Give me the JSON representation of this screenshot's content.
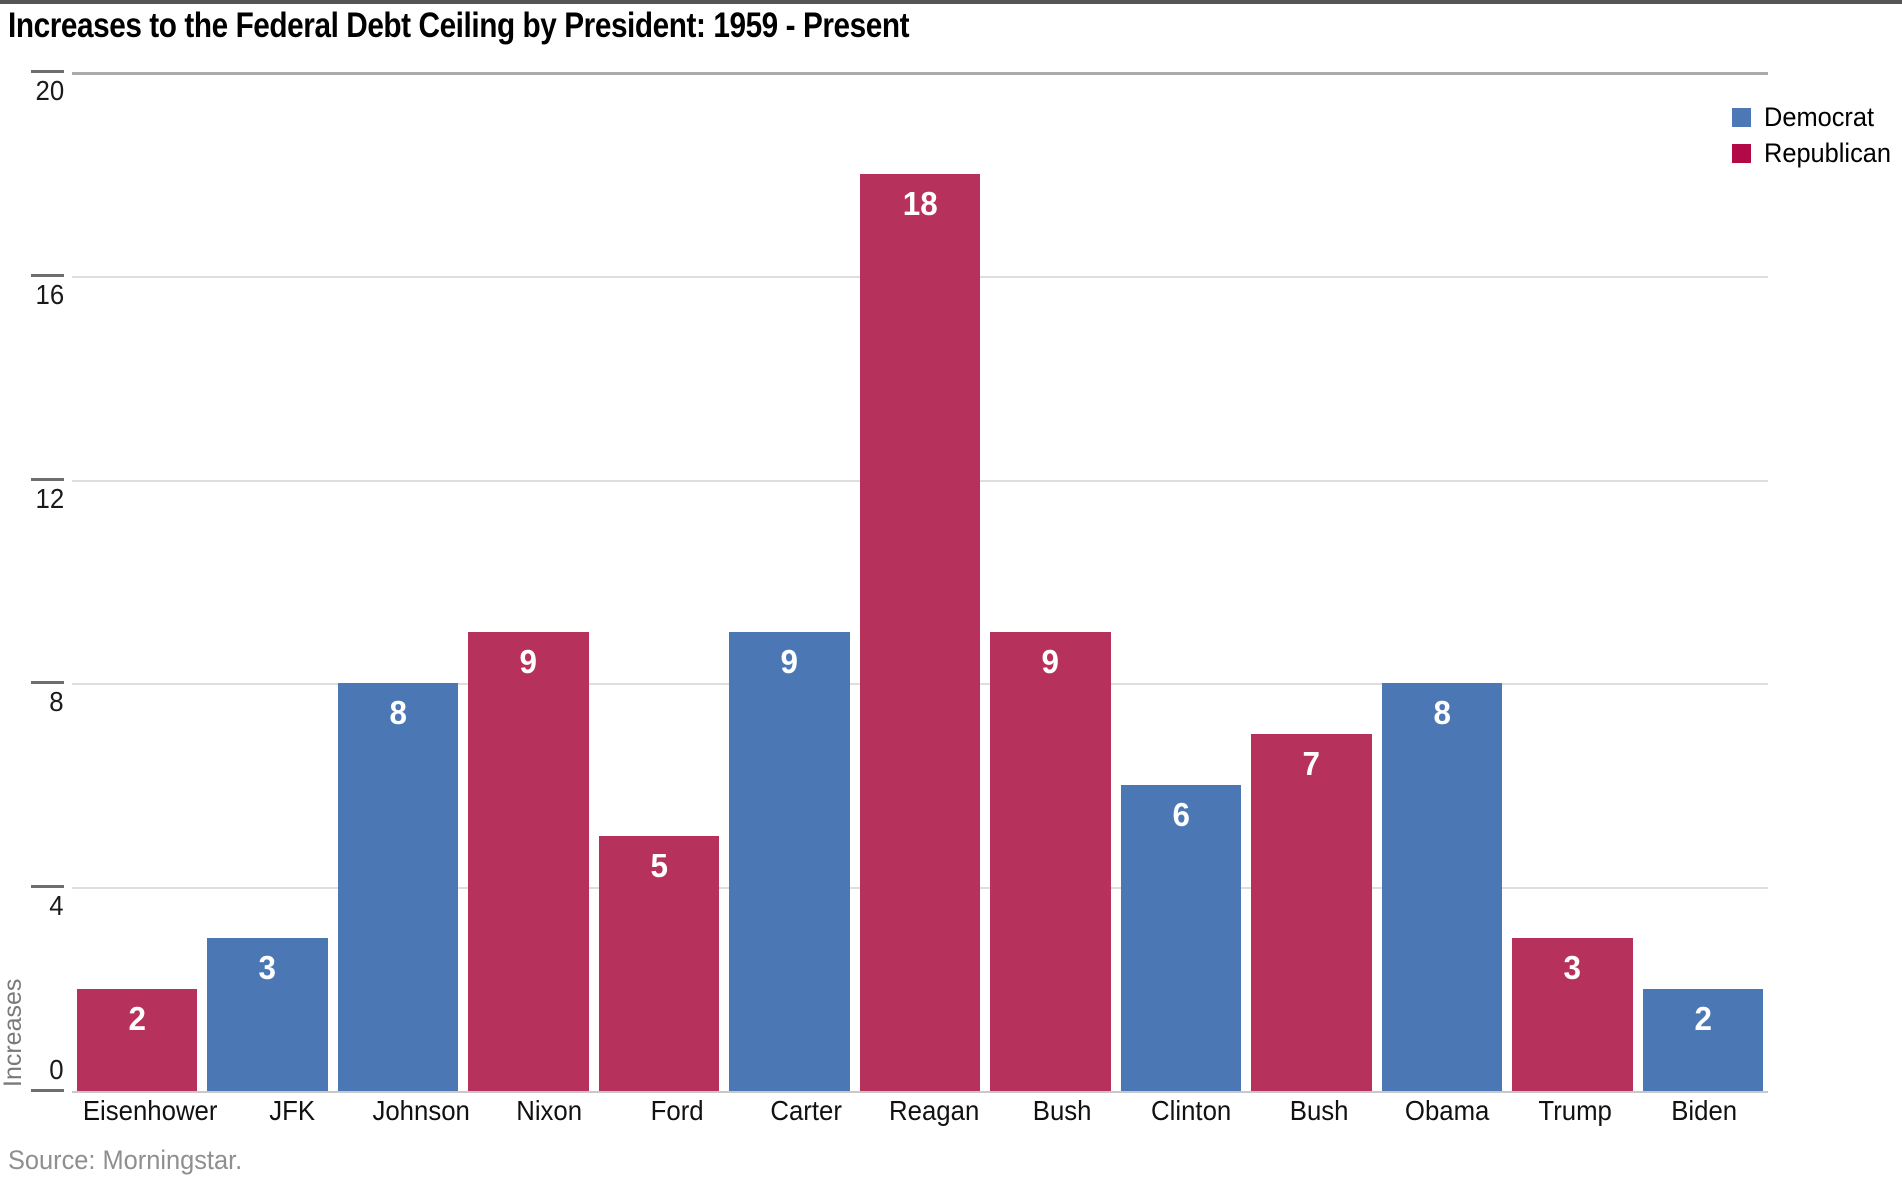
{
  "chart": {
    "title": "Increases to the Federal Debt Ceiling by President: 1959 - Present",
    "source": "Source: Morningstar."
  },
  "chart_data": {
    "type": "bar",
    "title": "Increases to the Federal Debt Ceiling by President: 1959 - Present",
    "xlabel": "",
    "ylabel": "Increases",
    "source": "Source: Morningstar.",
    "categories": [
      "Eisenhower",
      "JFK",
      "Johnson",
      "Nixon",
      "Ford",
      "Carter",
      "Reagan",
      "Bush",
      "Clinton",
      "Bush",
      "Obama",
      "Trump",
      "Biden"
    ],
    "values": [
      2,
      3,
      8,
      9,
      5,
      9,
      18,
      9,
      6,
      7,
      8,
      3,
      2
    ],
    "parties": [
      "Republican",
      "Democrat",
      "Democrat",
      "Republican",
      "Republican",
      "Democrat",
      "Republican",
      "Republican",
      "Democrat",
      "Republican",
      "Democrat",
      "Republican",
      "Democrat"
    ],
    "bar_labels": [
      "2",
      "3",
      "8",
      "9",
      "5",
      "9",
      "18",
      "9",
      "6",
      "7",
      "8",
      "3",
      "2"
    ],
    "ylim": [
      0,
      20
    ],
    "yticks": [
      0,
      4,
      8,
      12,
      16,
      20
    ],
    "grid": true,
    "legend_position": "top-right",
    "legend": [
      {
        "label": "Democrat",
        "color": "#4C79B6"
      },
      {
        "label": "Republican",
        "color": "#B20A47"
      }
    ],
    "colors": {
      "Democrat": "#4B78B5",
      "Republican": "#B6315C"
    }
  }
}
